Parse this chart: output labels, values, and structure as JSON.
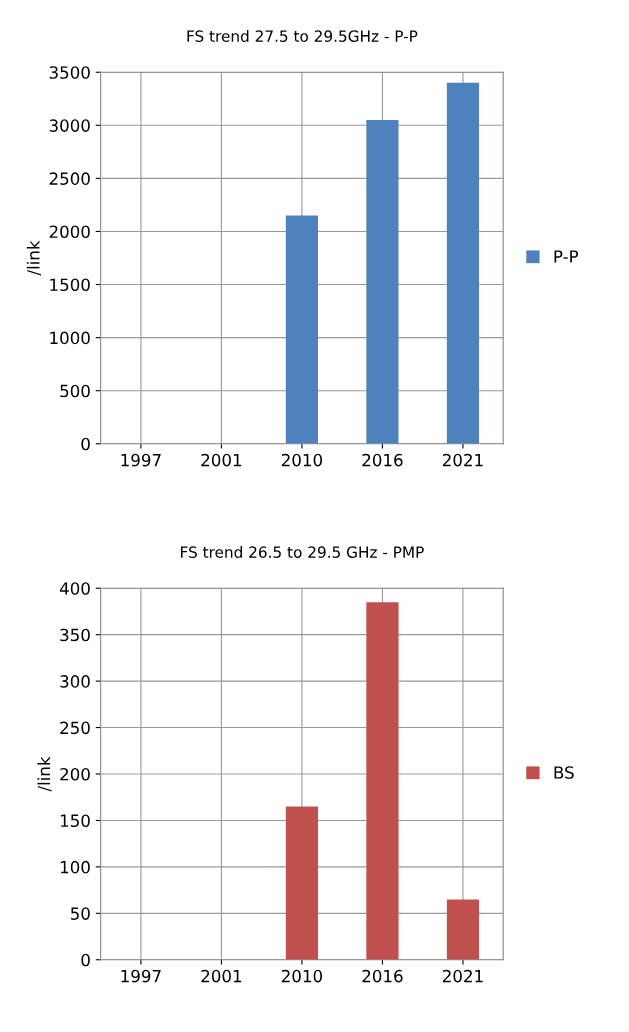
{
  "chart_data": [
    {
      "type": "bar",
      "title": "FS trend 27.5 to 29.5GHz - P-P",
      "ylabel": "/link",
      "categories": [
        "1997",
        "2001",
        "2010",
        "2016",
        "2021"
      ],
      "series": [
        {
          "name": "P-P",
          "color": "#4f81bd",
          "values": [
            0,
            0,
            2150,
            3050,
            3400
          ]
        }
      ],
      "ylim": [
        0,
        3500
      ],
      "yticks": [
        0,
        500,
        1000,
        1500,
        2000,
        2500,
        3000,
        3500
      ],
      "grid": true,
      "legend": "right"
    },
    {
      "type": "bar",
      "title": "FS trend 26.5 to 29.5 GHz - PMP",
      "ylabel": "/link",
      "categories": [
        "1997",
        "2001",
        "2010",
        "2016",
        "2021"
      ],
      "series": [
        {
          "name": "BS",
          "color": "#c0504d",
          "values": [
            0,
            0,
            165,
            385,
            65
          ]
        }
      ],
      "ylim": [
        0,
        400
      ],
      "yticks": [
        0,
        50,
        100,
        150,
        200,
        250,
        300,
        350,
        400
      ],
      "grid": true,
      "legend": "right"
    }
  ]
}
